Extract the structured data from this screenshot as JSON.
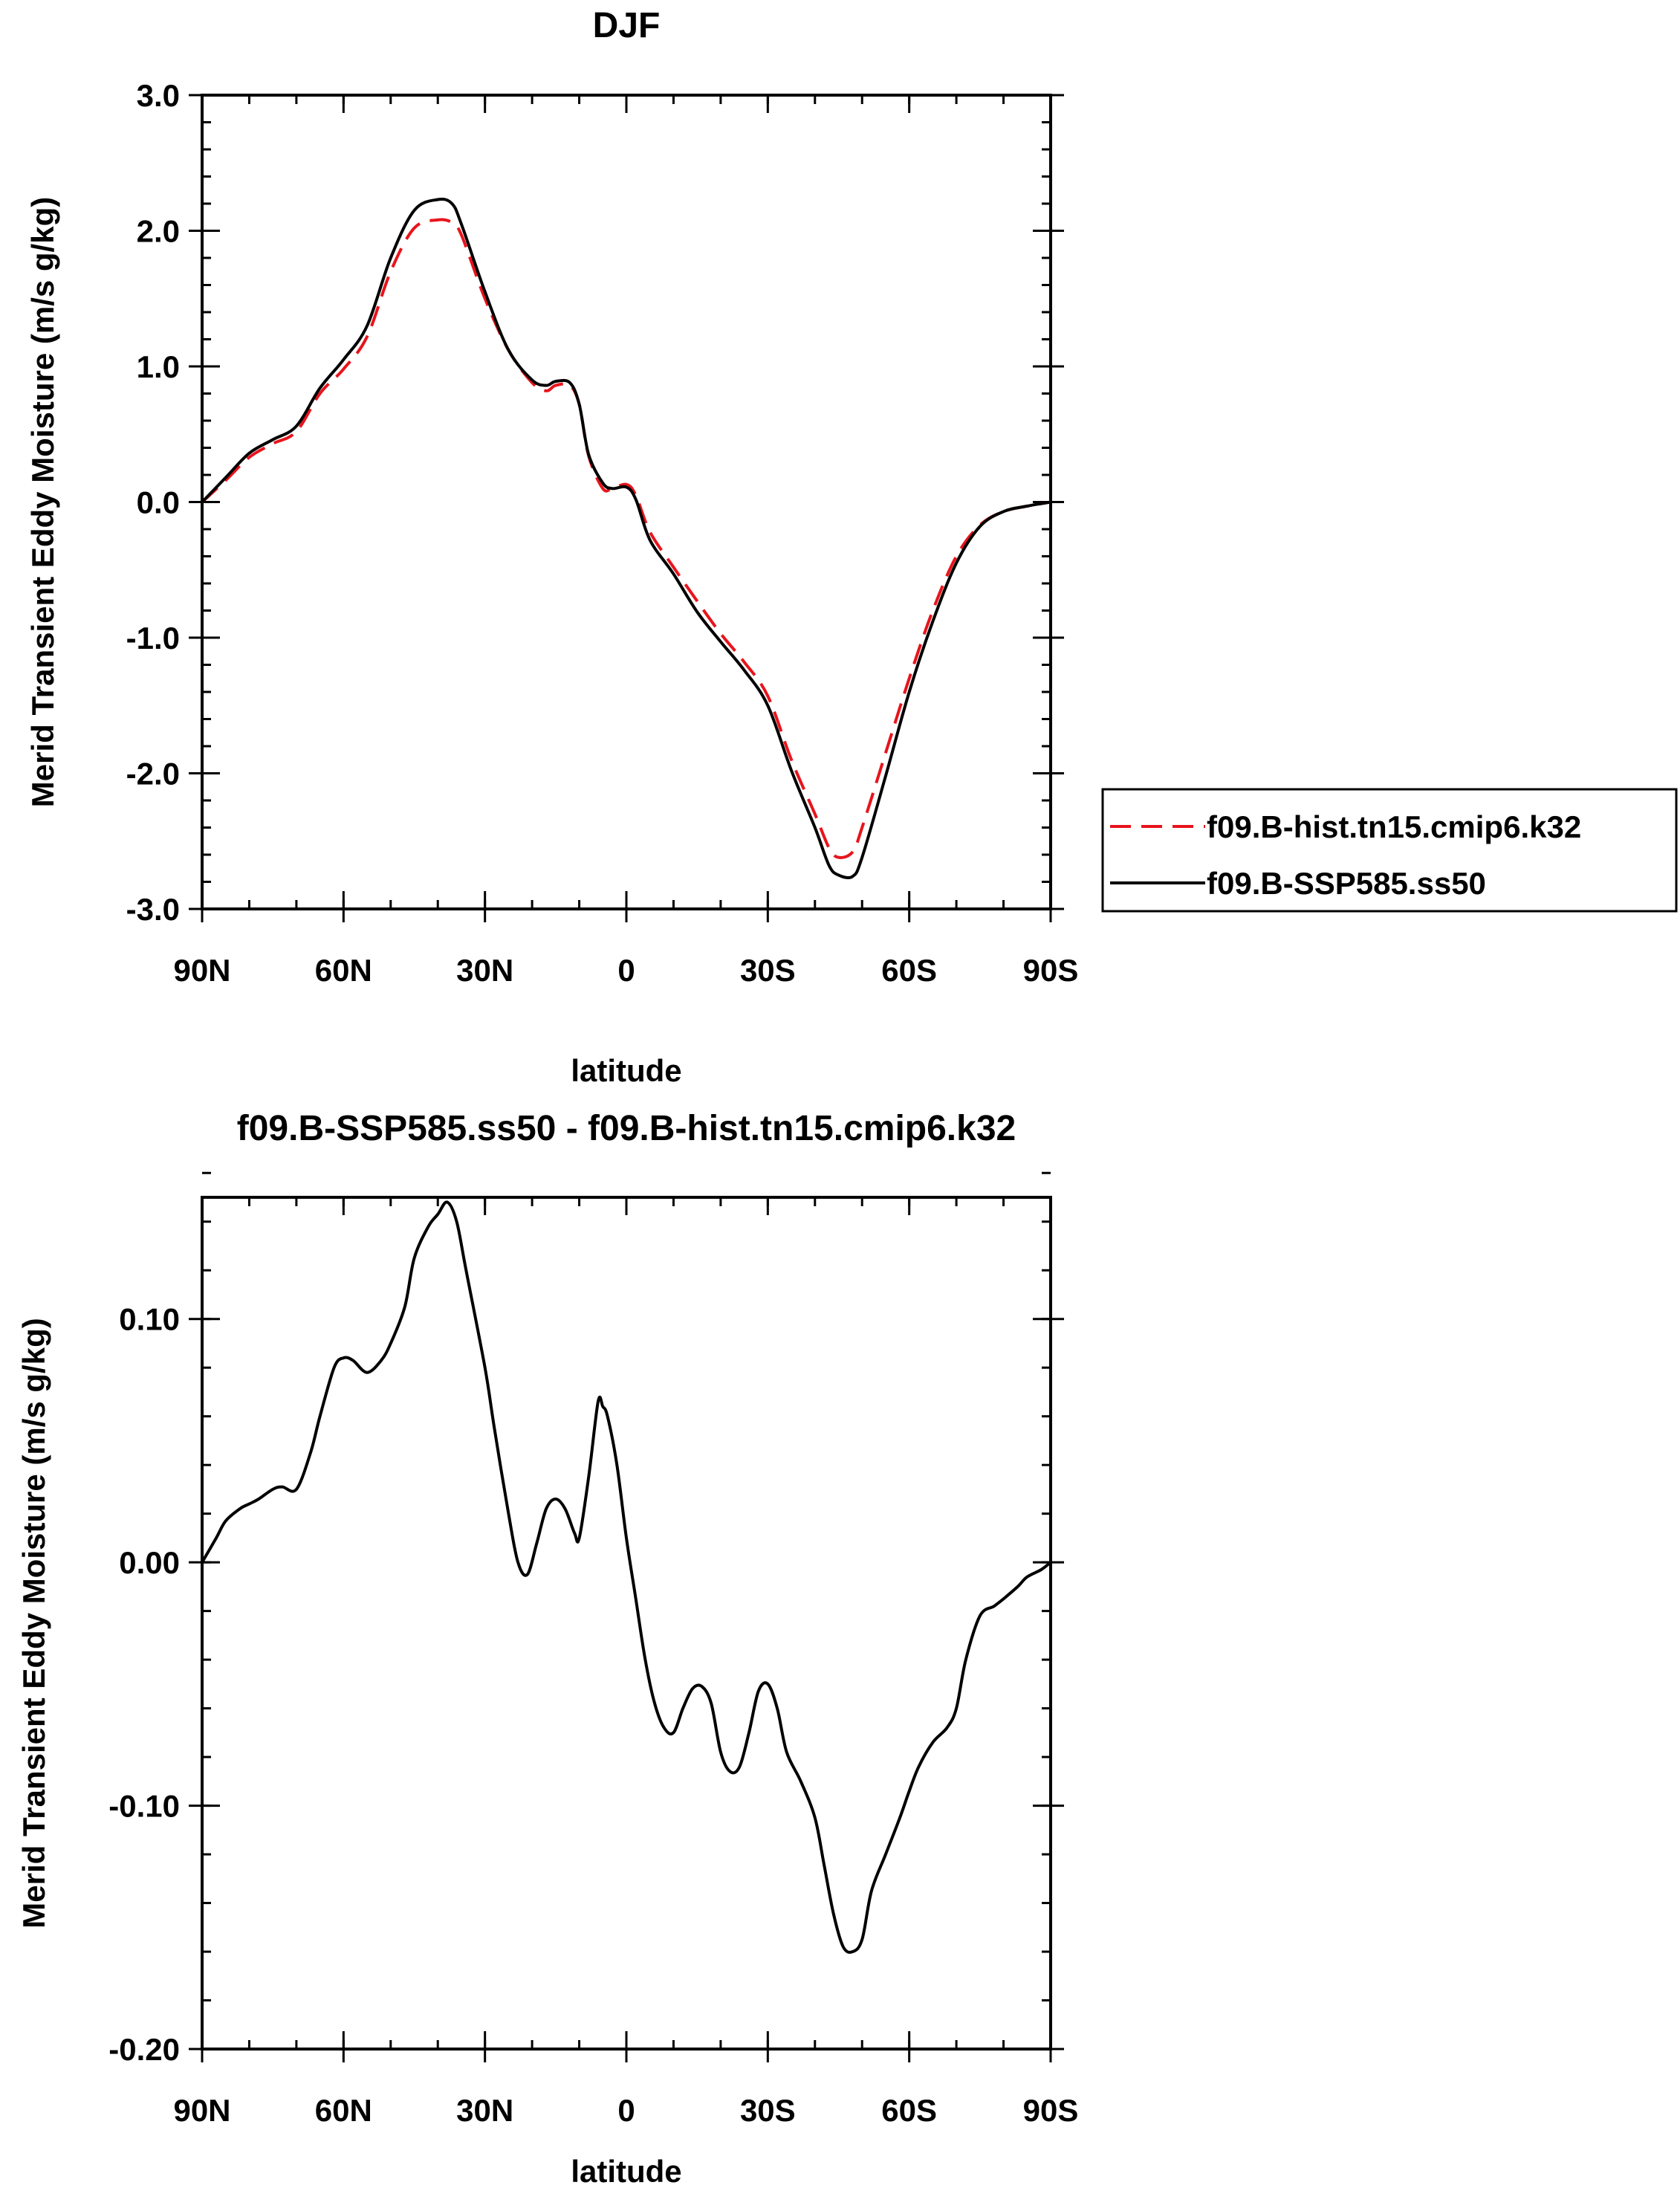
{
  "chart_data": [
    {
      "type": "line",
      "title": "DJF",
      "xlabel": "latitude",
      "ylabel": "Merid Transient Eddy Moisture (m/s g/kg)",
      "xlim": [
        90,
        -90
      ],
      "ylim": [
        -3.0,
        3.0
      ],
      "x_ticks": [
        {
          "value": 90,
          "label": "90N"
        },
        {
          "value": 60,
          "label": "60N"
        },
        {
          "value": 30,
          "label": "30N"
        },
        {
          "value": 0,
          "label": "0"
        },
        {
          "value": -30,
          "label": "30S"
        },
        {
          "value": -60,
          "label": "60S"
        },
        {
          "value": -90,
          "label": "90S"
        }
      ],
      "x_minor_step": 10,
      "y_ticks": [
        {
          "value": 3.0,
          "label": "3.0"
        },
        {
          "value": 2.0,
          "label": "2.0"
        },
        {
          "value": 1.0,
          "label": "1.0"
        },
        {
          "value": 0.0,
          "label": "0.0"
        },
        {
          "value": -1.0,
          "label": "-1.0"
        },
        {
          "value": -2.0,
          "label": "-2.0"
        },
        {
          "value": -3.0,
          "label": "-3.0"
        }
      ],
      "y_minor_step": 0.2,
      "grid": false,
      "legend": "right",
      "series": [
        {
          "name": "f09.B-hist.tn15.cmip6.k32",
          "color": "#e8141c",
          "dash": "dashed",
          "x": [
            90,
            85,
            80,
            75,
            70,
            65,
            60,
            55,
            50,
            45,
            40,
            37,
            35,
            30,
            25,
            20,
            17,
            15,
            12,
            10,
            8,
            5,
            3,
            0,
            -2,
            -5,
            -10,
            -15,
            -20,
            -25,
            -30,
            -35,
            -40,
            -43,
            -45,
            -48,
            -50,
            -55,
            -60,
            -65,
            -70,
            -75,
            -80,
            -85,
            -90
          ],
          "y": [
            0.0,
            0.16,
            0.33,
            0.43,
            0.52,
            0.8,
            0.98,
            1.22,
            1.7,
            2.02,
            2.08,
            2.06,
            1.97,
            1.5,
            1.12,
            0.88,
            0.82,
            0.86,
            0.86,
            0.72,
            0.34,
            0.1,
            0.1,
            0.13,
            0.05,
            -0.22,
            -0.48,
            -0.73,
            -0.97,
            -1.18,
            -1.43,
            -1.9,
            -2.3,
            -2.55,
            -2.62,
            -2.58,
            -2.4,
            -1.85,
            -1.3,
            -0.8,
            -0.4,
            -0.17,
            -0.07,
            -0.03,
            0.0
          ]
        },
        {
          "name": "f09.B-SSP585.ss50",
          "color": "#000000",
          "dash": "solid",
          "x": [
            90,
            85,
            80,
            75,
            70,
            65,
            60,
            55,
            50,
            45,
            40,
            37,
            35,
            30,
            25,
            20,
            17,
            15,
            12,
            10,
            8,
            5,
            3,
            0,
            -2,
            -5,
            -10,
            -15,
            -20,
            -25,
            -30,
            -35,
            -40,
            -43,
            -45,
            -48,
            -50,
            -55,
            -60,
            -65,
            -70,
            -75,
            -80,
            -85,
            -90
          ],
          "y": [
            0.0,
            0.18,
            0.36,
            0.46,
            0.56,
            0.84,
            1.05,
            1.3,
            1.8,
            2.15,
            2.23,
            2.2,
            2.05,
            1.55,
            1.12,
            0.9,
            0.86,
            0.89,
            0.88,
            0.72,
            0.35,
            0.14,
            0.1,
            0.11,
            0.02,
            -0.28,
            -0.53,
            -0.81,
            -1.03,
            -1.24,
            -1.5,
            -1.98,
            -2.4,
            -2.68,
            -2.75,
            -2.76,
            -2.62,
            -2.02,
            -1.4,
            -0.88,
            -0.45,
            -0.18,
            -0.07,
            -0.03,
            0.0
          ]
        }
      ]
    },
    {
      "type": "line",
      "title": "f09.B-SSP585.ss50 - f09.B-hist.tn15.cmip6.k32",
      "xlabel": "latitude",
      "ylabel": "Merid Transient Eddy Moisture (m/s g/kg)",
      "xlim": [
        90,
        -90
      ],
      "ylim": [
        -0.2,
        0.15
      ],
      "x_ticks": [
        {
          "value": 90,
          "label": "90N"
        },
        {
          "value": 60,
          "label": "60N"
        },
        {
          "value": 30,
          "label": "30N"
        },
        {
          "value": 0,
          "label": "0"
        },
        {
          "value": -30,
          "label": "30S"
        },
        {
          "value": -60,
          "label": "60S"
        },
        {
          "value": -90,
          "label": "90S"
        }
      ],
      "x_minor_step": 10,
      "y_ticks": [
        {
          "value": 0.1,
          "label": "0.10"
        },
        {
          "value": 0.0,
          "label": "0.00"
        },
        {
          "value": -0.1,
          "label": "-0.10"
        },
        {
          "value": -0.2,
          "label": "-0.20"
        }
      ],
      "y_minor_step": 0.02,
      "grid": false,
      "series": [
        {
          "color": "#000000",
          "dash": "solid",
          "x": [
            90,
            87,
            85,
            82,
            80,
            78,
            75,
            73,
            70,
            67,
            65,
            62,
            60,
            58,
            55,
            52,
            50,
            47,
            45,
            42,
            40,
            38,
            36,
            34,
            30,
            28,
            25,
            23,
            21,
            19,
            17,
            15,
            13,
            11,
            10,
            8,
            6,
            5,
            4,
            2,
            0,
            -2,
            -4,
            -6,
            -8,
            -10,
            -12,
            -14,
            -16,
            -18,
            -20,
            -22,
            -24,
            -26,
            -28,
            -30,
            -32,
            -34,
            -37,
            -40,
            -42,
            -44,
            -46,
            -48,
            -50,
            -52,
            -55,
            -58,
            -60,
            -62,
            -65,
            -68,
            -70,
            -72,
            -75,
            -78,
            -80,
            -83,
            -85,
            -88,
            -90
          ],
          "y": [
            0.0,
            0.01,
            0.017,
            0.022,
            0.024,
            0.026,
            0.03,
            0.031,
            0.03,
            0.045,
            0.06,
            0.08,
            0.084,
            0.083,
            0.078,
            0.083,
            0.09,
            0.105,
            0.125,
            0.138,
            0.143,
            0.148,
            0.14,
            0.12,
            0.08,
            0.055,
            0.02,
            0.0,
            -0.005,
            0.008,
            0.022,
            0.026,
            0.022,
            0.012,
            0.01,
            0.035,
            0.066,
            0.064,
            0.06,
            0.04,
            0.01,
            -0.015,
            -0.04,
            -0.058,
            -0.068,
            -0.07,
            -0.06,
            -0.052,
            -0.051,
            -0.058,
            -0.078,
            -0.086,
            -0.084,
            -0.07,
            -0.053,
            -0.05,
            -0.06,
            -0.078,
            -0.09,
            -0.105,
            -0.125,
            -0.145,
            -0.158,
            -0.16,
            -0.155,
            -0.135,
            -0.12,
            -0.105,
            -0.094,
            -0.084,
            -0.074,
            -0.068,
            -0.06,
            -0.04,
            -0.022,
            -0.018,
            -0.015,
            -0.01,
            -0.006,
            -0.003,
            0.0
          ]
        }
      ]
    }
  ]
}
